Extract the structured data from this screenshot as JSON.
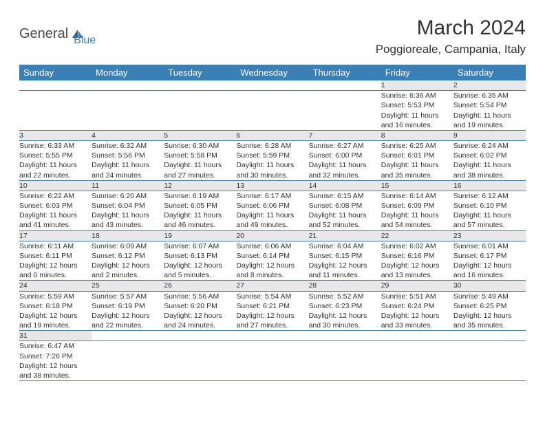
{
  "logo": {
    "text1": "General",
    "text2": "Blue"
  },
  "title": "March 2024",
  "location": "Poggioreale, Campania, Italy",
  "colors": {
    "header_bg": "#3b7fb5",
    "header_text": "#ffffff",
    "daynum_bg": "#e8e8e8",
    "border": "#3b7fb5",
    "body_text": "#333333"
  },
  "day_headers": [
    "Sunday",
    "Monday",
    "Tuesday",
    "Wednesday",
    "Thursday",
    "Friday",
    "Saturday"
  ],
  "weeks": [
    [
      null,
      null,
      null,
      null,
      null,
      {
        "d": "1",
        "sr": "Sunrise: 6:36 AM",
        "ss": "Sunset: 5:53 PM",
        "dl1": "Daylight: 11 hours",
        "dl2": "and 16 minutes."
      },
      {
        "d": "2",
        "sr": "Sunrise: 6:35 AM",
        "ss": "Sunset: 5:54 PM",
        "dl1": "Daylight: 11 hours",
        "dl2": "and 19 minutes."
      }
    ],
    [
      {
        "d": "3",
        "sr": "Sunrise: 6:33 AM",
        "ss": "Sunset: 5:55 PM",
        "dl1": "Daylight: 11 hours",
        "dl2": "and 22 minutes."
      },
      {
        "d": "4",
        "sr": "Sunrise: 6:32 AM",
        "ss": "Sunset: 5:56 PM",
        "dl1": "Daylight: 11 hours",
        "dl2": "and 24 minutes."
      },
      {
        "d": "5",
        "sr": "Sunrise: 6:30 AM",
        "ss": "Sunset: 5:58 PM",
        "dl1": "Daylight: 11 hours",
        "dl2": "and 27 minutes."
      },
      {
        "d": "6",
        "sr": "Sunrise: 6:28 AM",
        "ss": "Sunset: 5:59 PM",
        "dl1": "Daylight: 11 hours",
        "dl2": "and 30 minutes."
      },
      {
        "d": "7",
        "sr": "Sunrise: 6:27 AM",
        "ss": "Sunset: 6:00 PM",
        "dl1": "Daylight: 11 hours",
        "dl2": "and 32 minutes."
      },
      {
        "d": "8",
        "sr": "Sunrise: 6:25 AM",
        "ss": "Sunset: 6:01 PM",
        "dl1": "Daylight: 11 hours",
        "dl2": "and 35 minutes."
      },
      {
        "d": "9",
        "sr": "Sunrise: 6:24 AM",
        "ss": "Sunset: 6:02 PM",
        "dl1": "Daylight: 11 hours",
        "dl2": "and 38 minutes."
      }
    ],
    [
      {
        "d": "10",
        "sr": "Sunrise: 6:22 AM",
        "ss": "Sunset: 6:03 PM",
        "dl1": "Daylight: 11 hours",
        "dl2": "and 41 minutes."
      },
      {
        "d": "11",
        "sr": "Sunrise: 6:20 AM",
        "ss": "Sunset: 6:04 PM",
        "dl1": "Daylight: 11 hours",
        "dl2": "and 43 minutes."
      },
      {
        "d": "12",
        "sr": "Sunrise: 6:19 AM",
        "ss": "Sunset: 6:05 PM",
        "dl1": "Daylight: 11 hours",
        "dl2": "and 46 minutes."
      },
      {
        "d": "13",
        "sr": "Sunrise: 6:17 AM",
        "ss": "Sunset: 6:06 PM",
        "dl1": "Daylight: 11 hours",
        "dl2": "and 49 minutes."
      },
      {
        "d": "14",
        "sr": "Sunrise: 6:15 AM",
        "ss": "Sunset: 6:08 PM",
        "dl1": "Daylight: 11 hours",
        "dl2": "and 52 minutes."
      },
      {
        "d": "15",
        "sr": "Sunrise: 6:14 AM",
        "ss": "Sunset: 6:09 PM",
        "dl1": "Daylight: 11 hours",
        "dl2": "and 54 minutes."
      },
      {
        "d": "16",
        "sr": "Sunrise: 6:12 AM",
        "ss": "Sunset: 6:10 PM",
        "dl1": "Daylight: 11 hours",
        "dl2": "and 57 minutes."
      }
    ],
    [
      {
        "d": "17",
        "sr": "Sunrise: 6:11 AM",
        "ss": "Sunset: 6:11 PM",
        "dl1": "Daylight: 12 hours",
        "dl2": "and 0 minutes."
      },
      {
        "d": "18",
        "sr": "Sunrise: 6:09 AM",
        "ss": "Sunset: 6:12 PM",
        "dl1": "Daylight: 12 hours",
        "dl2": "and 2 minutes."
      },
      {
        "d": "19",
        "sr": "Sunrise: 6:07 AM",
        "ss": "Sunset: 6:13 PM",
        "dl1": "Daylight: 12 hours",
        "dl2": "and 5 minutes."
      },
      {
        "d": "20",
        "sr": "Sunrise: 6:06 AM",
        "ss": "Sunset: 6:14 PM",
        "dl1": "Daylight: 12 hours",
        "dl2": "and 8 minutes."
      },
      {
        "d": "21",
        "sr": "Sunrise: 6:04 AM",
        "ss": "Sunset: 6:15 PM",
        "dl1": "Daylight: 12 hours",
        "dl2": "and 11 minutes."
      },
      {
        "d": "22",
        "sr": "Sunrise: 6:02 AM",
        "ss": "Sunset: 6:16 PM",
        "dl1": "Daylight: 12 hours",
        "dl2": "and 13 minutes."
      },
      {
        "d": "23",
        "sr": "Sunrise: 6:01 AM",
        "ss": "Sunset: 6:17 PM",
        "dl1": "Daylight: 12 hours",
        "dl2": "and 16 minutes."
      }
    ],
    [
      {
        "d": "24",
        "sr": "Sunrise: 5:59 AM",
        "ss": "Sunset: 6:18 PM",
        "dl1": "Daylight: 12 hours",
        "dl2": "and 19 minutes."
      },
      {
        "d": "25",
        "sr": "Sunrise: 5:57 AM",
        "ss": "Sunset: 6:19 PM",
        "dl1": "Daylight: 12 hours",
        "dl2": "and 22 minutes."
      },
      {
        "d": "26",
        "sr": "Sunrise: 5:56 AM",
        "ss": "Sunset: 6:20 PM",
        "dl1": "Daylight: 12 hours",
        "dl2": "and 24 minutes."
      },
      {
        "d": "27",
        "sr": "Sunrise: 5:54 AM",
        "ss": "Sunset: 6:21 PM",
        "dl1": "Daylight: 12 hours",
        "dl2": "and 27 minutes."
      },
      {
        "d": "28",
        "sr": "Sunrise: 5:52 AM",
        "ss": "Sunset: 6:23 PM",
        "dl1": "Daylight: 12 hours",
        "dl2": "and 30 minutes."
      },
      {
        "d": "29",
        "sr": "Sunrise: 5:51 AM",
        "ss": "Sunset: 6:24 PM",
        "dl1": "Daylight: 12 hours",
        "dl2": "and 33 minutes."
      },
      {
        "d": "30",
        "sr": "Sunrise: 5:49 AM",
        "ss": "Sunset: 6:25 PM",
        "dl1": "Daylight: 12 hours",
        "dl2": "and 35 minutes."
      }
    ],
    [
      {
        "d": "31",
        "sr": "Sunrise: 6:47 AM",
        "ss": "Sunset: 7:26 PM",
        "dl1": "Daylight: 12 hours",
        "dl2": "and 38 minutes."
      },
      null,
      null,
      null,
      null,
      null,
      null
    ]
  ]
}
